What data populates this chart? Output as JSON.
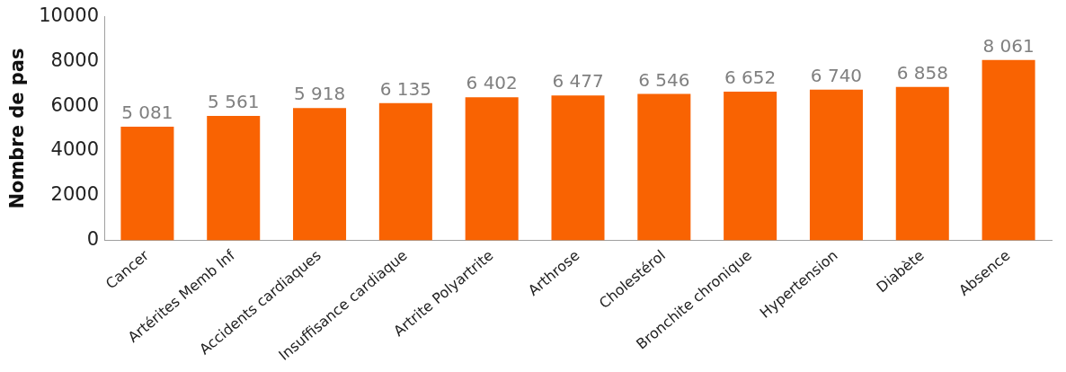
{
  "chart_data": {
    "type": "bar",
    "ylabel": "Nombre de pas",
    "categories": [
      "Cancer",
      "Artérites Memb Inf",
      "Accidents cardiaques",
      "Insuffisance cardiaque",
      "Artrite Polyartrite",
      "Arthrose",
      "Cholestérol",
      "Bronchite chronique",
      "Hypertension",
      "Diabète",
      "Absence"
    ],
    "values": [
      5081,
      5561,
      5918,
      6135,
      6402,
      6477,
      6546,
      6652,
      6740,
      6858,
      8061
    ],
    "value_labels": [
      "5 081",
      "5 561",
      "5 918",
      "6 135",
      "6 402",
      "6 477",
      "6 546",
      "6 652",
      "6 740",
      "6 858",
      "8 061"
    ],
    "color": "#f96302",
    "ylim": [
      0,
      10000
    ],
    "yticks": [
      0,
      2000,
      4000,
      6000,
      8000,
      10000
    ],
    "grid": false,
    "legend": false
  }
}
